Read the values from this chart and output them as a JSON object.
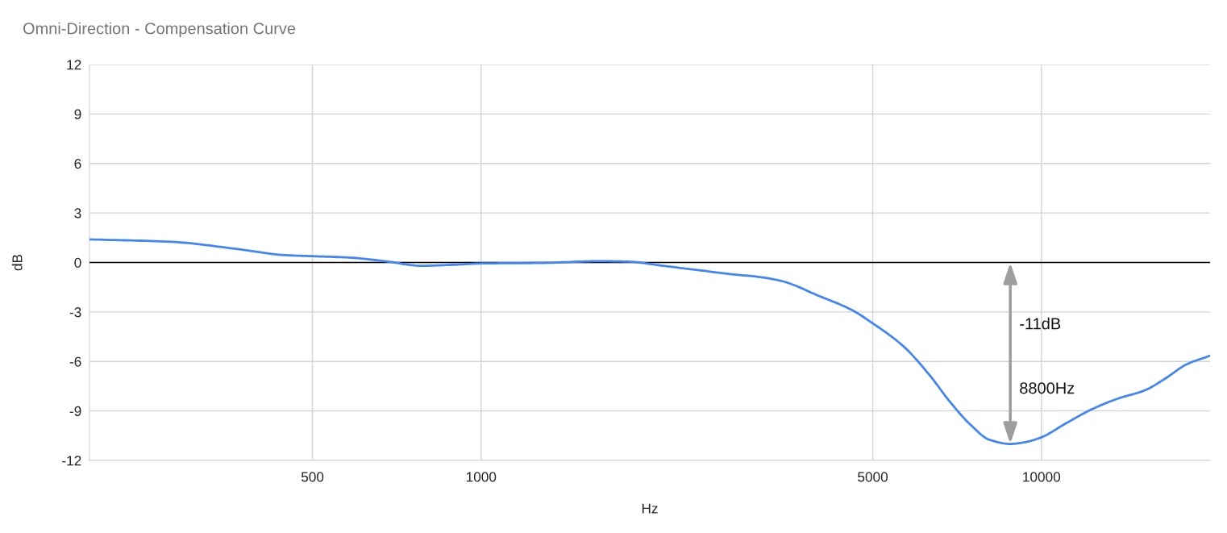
{
  "chart_data": {
    "type": "line",
    "title": "Omni-Direction - Compensation Curve",
    "xlabel": "Hz",
    "ylabel": "dB",
    "x": [
      200,
      280,
      370,
      445,
      500,
      580,
      680,
      780,
      880,
      1000,
      1280,
      1630,
      1830,
      2110,
      2490,
      2780,
      3170,
      3460,
      3990,
      4600,
      4980,
      5680,
      6340,
      6850,
      7480,
      8080,
      8800,
      9330,
      10000,
      11000,
      12300,
      13700,
      15300,
      16700,
      18100,
      20000
    ],
    "series": [
      {
        "color": "#4285f4",
        "values": [
          1.4,
          1.25,
          0.8,
          0.45,
          0.38,
          0.3,
          0.06,
          -0.2,
          -0.15,
          -0.06,
          -0.03,
          0.08,
          0.05,
          -0.2,
          -0.5,
          -0.7,
          -0.9,
          -1.15,
          -2.0,
          -2.9,
          -3.65,
          -5.1,
          -6.9,
          -8.4,
          -9.85,
          -10.75,
          -11.0,
          -10.9,
          -10.6,
          -9.8,
          -8.9,
          -8.25,
          -7.75,
          -7.0,
          -6.2,
          -5.65
        ]
      }
    ],
    "log": "x",
    "xlim": [
      200,
      20000
    ],
    "xticks": [
      500,
      1000,
      5000,
      10000
    ],
    "ylim": [
      -12,
      12
    ],
    "yticks": [
      -12,
      -9,
      -6,
      -3,
      0,
      3,
      6,
      9,
      12
    ],
    "grid": true,
    "line_style": "solid",
    "ref_lines": [
      {
        "axis": "y",
        "value": 0,
        "color": "#000000"
      }
    ],
    "annotations": [
      "-11dB",
      "8800Hz"
    ]
  }
}
